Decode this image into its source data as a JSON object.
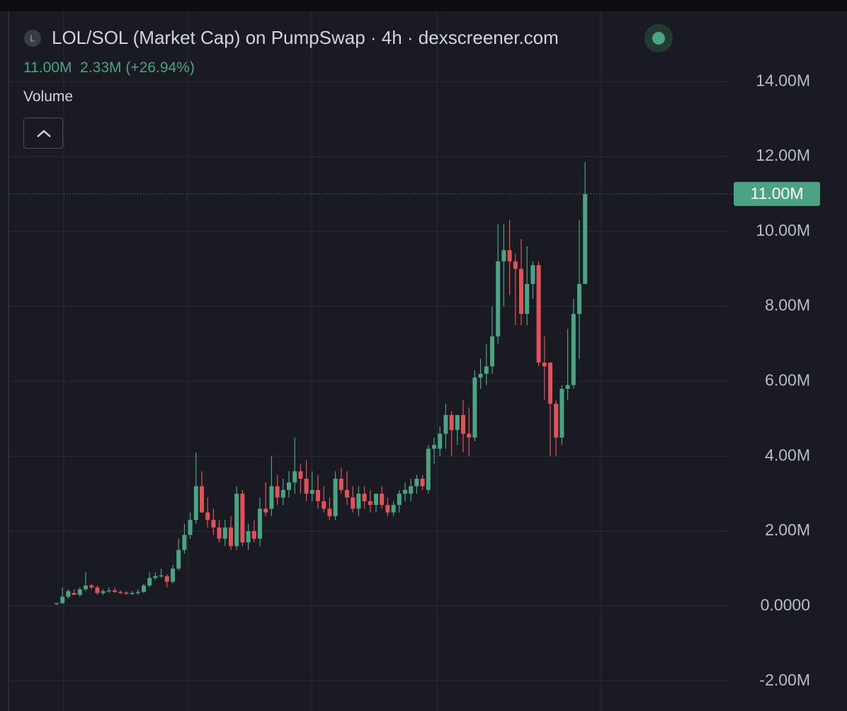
{
  "header": {
    "icon": "L",
    "title": "LOL/SOL (Market Cap) on PumpSwap · 4h · dexscreener.com",
    "close": "11.00M",
    "change": "2.33M (+26.94%)",
    "volume": "Volume"
  },
  "chart_data": {
    "type": "candlestick",
    "up_color": "#4aa383",
    "down_color": "#e0525a",
    "grid": true,
    "ylim": [
      -2800000,
      15800000
    ],
    "yticks": [
      {
        "value": -2000000,
        "label": "-2.00M"
      },
      {
        "value": 0,
        "label": "0.0000"
      },
      {
        "value": 2000000,
        "label": "2.00M"
      },
      {
        "value": 4000000,
        "label": "4.00M"
      },
      {
        "value": 6000000,
        "label": "6.00M"
      },
      {
        "value": 8000000,
        "label": "8.00M"
      },
      {
        "value": 10000000,
        "label": "10.00M"
      },
      {
        "value": 12000000,
        "label": "12.00M"
      },
      {
        "value": 14000000,
        "label": "14.00M"
      }
    ],
    "last_value": {
      "value": 11000000,
      "label": "11.00M"
    },
    "open": [
      50000,
      80000,
      250000,
      350000,
      300000,
      450000,
      550000,
      500000,
      350000,
      400000,
      420000,
      380000,
      360000,
      330000,
      350000,
      380000,
      550000,
      750000,
      800000,
      800000,
      650000,
      1000000,
      1500000,
      1900000,
      2300000,
      3200000,
      2500000,
      2300000,
      2100000,
      1800000,
      2100000,
      1600000,
      3000000,
      1700000,
      2000000,
      1800000,
      2600000,
      2600000,
      3200000,
      2900000,
      3100000,
      3300000,
      3600000,
      3400000,
      3000000,
      3100000,
      2800000,
      2600000,
      2400000,
      3400000,
      3100000,
      2900000,
      2600000,
      3000000,
      2800000,
      2700000,
      3000000,
      2700000,
      2500000,
      2700000,
      3000000,
      3000000,
      3200000,
      3400000,
      3100000,
      4200000,
      4200000,
      4600000,
      5100000,
      4700000,
      5100000,
      4600000,
      4500000,
      6100000,
      6200000,
      6400000,
      7200000,
      9200000,
      9500000,
      9200000,
      9000000,
      7800000,
      8600000,
      9100000,
      6500000,
      6500000,
      5400000,
      4500000,
      5800000,
      5900000,
      7800000,
      8600000
    ],
    "high": [
      80000,
      500000,
      450000,
      450000,
      500000,
      900000,
      600000,
      550000,
      450000,
      500000,
      500000,
      420000,
      400000,
      400000,
      450000,
      600000,
      900000,
      900000,
      1000000,
      850000,
      1100000,
      1800000,
      2200000,
      2500000,
      4100000,
      3600000,
      2900000,
      2600000,
      2300000,
      2300000,
      2400000,
      3200000,
      3100000,
      2200000,
      2300000,
      2900000,
      3300000,
      4000000,
      3500000,
      3400000,
      3600000,
      4500000,
      3800000,
      3900000,
      3600000,
      3500000,
      3200000,
      2900000,
      3600000,
      3700000,
      3600000,
      3200000,
      3200000,
      3200000,
      3100000,
      3000000,
      3200000,
      2900000,
      2800000,
      3100000,
      3300000,
      3400000,
      3500000,
      3500000,
      4300000,
      4500000,
      4800000,
      5400000,
      5200000,
      5100000,
      5500000,
      5300000,
      6300000,
      6600000,
      7000000,
      8000000,
      10200000,
      10200000,
      10300000,
      9400000,
      9800000,
      9600000,
      9200000,
      9200000,
      7200000,
      6500000,
      5500000,
      5900000,
      7400000,
      8200000,
      10300000,
      11850000
    ],
    "low": [
      30000,
      50000,
      200000,
      300000,
      250000,
      400000,
      450000,
      300000,
      300000,
      350000,
      350000,
      320000,
      300000,
      300000,
      300000,
      350000,
      500000,
      700000,
      750000,
      500000,
      600000,
      950000,
      1400000,
      1800000,
      2200000,
      2500000,
      2100000,
      1900000,
      1700000,
      1600000,
      1500000,
      1500000,
      1600000,
      1500000,
      1700000,
      1600000,
      2400000,
      2400000,
      2700000,
      2700000,
      2900000,
      3000000,
      3000000,
      2800000,
      2800000,
      2600000,
      2500000,
      2300000,
      2300000,
      3000000,
      2700000,
      2500000,
      2400000,
      2600000,
      2500000,
      2500000,
      2600000,
      2400000,
      2400000,
      2500000,
      2800000,
      2800000,
      3000000,
      3100000,
      3000000,
      3800000,
      4000000,
      4200000,
      4000000,
      4300000,
      4100000,
      4000000,
      4400000,
      5800000,
      5900000,
      6200000,
      7000000,
      8000000,
      8300000,
      7500000,
      7500000,
      7500000,
      8200000,
      6400000,
      5500000,
      4000000,
      4000000,
      4300000,
      5500000,
      5800000,
      6600000,
      8600000
    ],
    "close": [
      80000,
      250000,
      400000,
      300000,
      450000,
      550000,
      500000,
      350000,
      400000,
      420000,
      380000,
      360000,
      330000,
      350000,
      380000,
      550000,
      750000,
      800000,
      820000,
      650000,
      1000000,
      1500000,
      1900000,
      2300000,
      3200000,
      2500000,
      2300000,
      2100000,
      1800000,
      2100000,
      1600000,
      3000000,
      1700000,
      2000000,
      1800000,
      2600000,
      2500000,
      3200000,
      2900000,
      3100000,
      3300000,
      3600000,
      3400000,
      3000000,
      3100000,
      2800000,
      2600000,
      2400000,
      3400000,
      3100000,
      2900000,
      2600000,
      3000000,
      2800000,
      2700000,
      3000000,
      2700000,
      2500000,
      2700000,
      3000000,
      3100000,
      3200000,
      3400000,
      3200000,
      4200000,
      4300000,
      4600000,
      5100000,
      4700000,
      5100000,
      4600000,
      4500000,
      6100000,
      6200000,
      6400000,
      7200000,
      9200000,
      9500000,
      9200000,
      9000000,
      7800000,
      8600000,
      9100000,
      6500000,
      6400000,
      5400000,
      4500000,
      5800000,
      5900000,
      7800000,
      8600000,
      11000000
    ]
  }
}
